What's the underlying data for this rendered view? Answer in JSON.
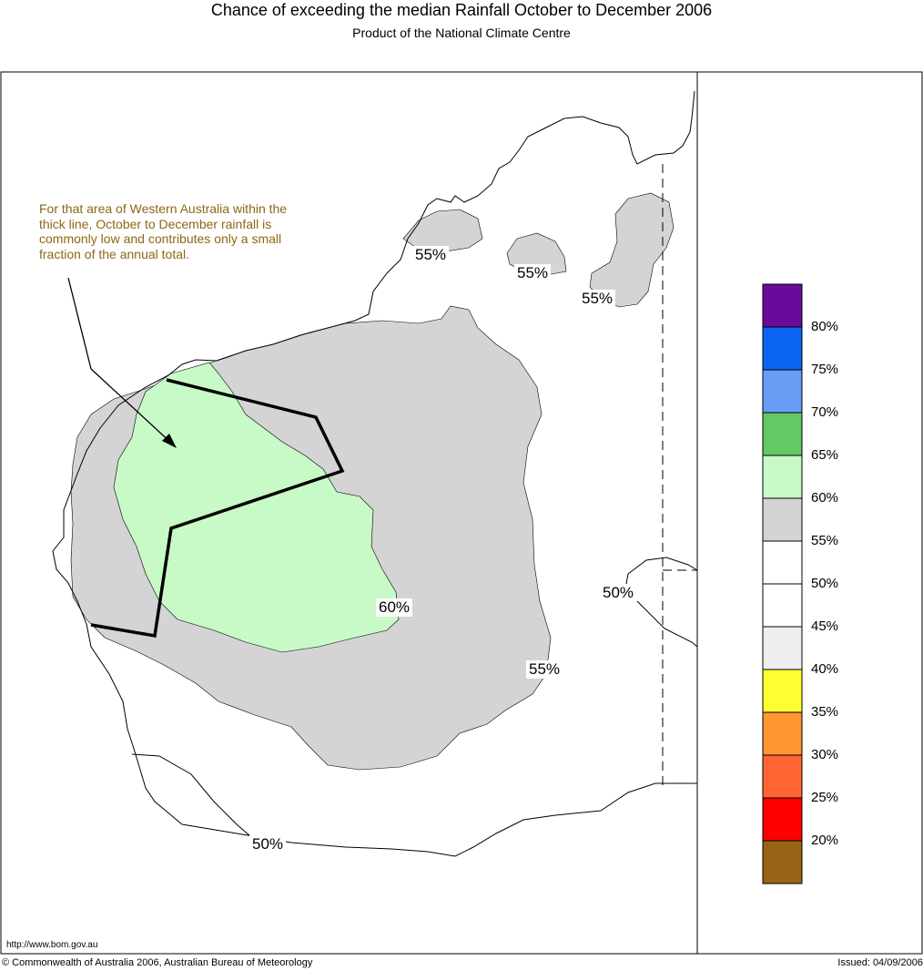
{
  "title": "Chance of exceeding the median Rainfall October to December 2006",
  "subtitle": "Product of the National Climate Centre",
  "annotation": "For that area of Western Australia within the thick line, October to December rainfall is commonly low and contributes only a small fraction of the annual total.",
  "contour_labels": [
    "55%",
    "55%",
    "55%",
    "60%",
    "50%",
    "55%",
    "50%"
  ],
  "legend": {
    "colors": [
      "#6a0a9a",
      "#0a64f0",
      "#6a9cf6",
      "#64c864",
      "#c8fac8",
      "#d4d4d4",
      "#ffffff",
      "#ffffff",
      "#eeeeee",
      "#ffff32",
      "#ff9632",
      "#ff6432",
      "#ff0000",
      "#966414"
    ],
    "labels": [
      "80%",
      "75%",
      "70%",
      "65%",
      "60%",
      "55%",
      "50%",
      "45%",
      "40%",
      "35%",
      "30%",
      "25%",
      "20%"
    ]
  },
  "map_colors": {
    "grey_zone": "#d4d4d4",
    "green_zone": "#c8fac8"
  },
  "footer": {
    "url": "http://www.bom.gov.au",
    "copyright": "© Commonwealth of Australia 2006, Australian Bureau of Meteorology",
    "issued": "Issued: 04/09/2006"
  }
}
